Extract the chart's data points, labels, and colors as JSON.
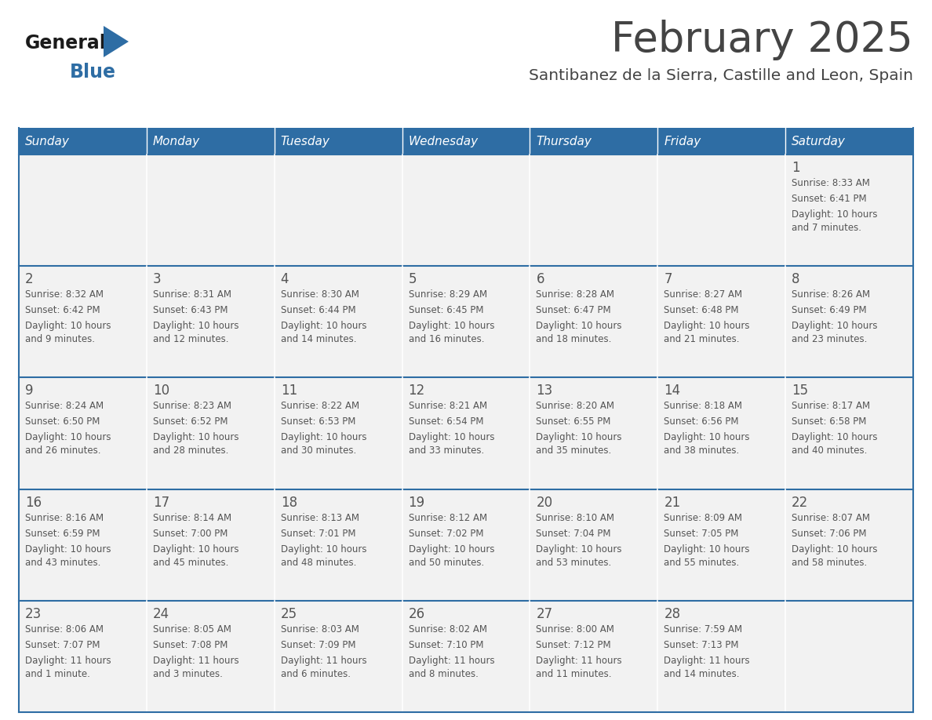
{
  "title": "February 2025",
  "subtitle": "Santibanez de la Sierra, Castille and Leon, Spain",
  "days_of_week": [
    "Sunday",
    "Monday",
    "Tuesday",
    "Wednesday",
    "Thursday",
    "Friday",
    "Saturday"
  ],
  "header_bg": "#2E6DA4",
  "header_text": "#FFFFFF",
  "cell_bg": "#F2F2F2",
  "cell_text": "#555555",
  "divider_color": "#2E6DA4",
  "title_color": "#444444",
  "subtitle_color": "#444444",
  "logo_general_color": "#1a1a1a",
  "logo_blue_color": "#2E6DA4",
  "weeks": [
    [
      {
        "day": null,
        "sunrise": null,
        "sunset": null,
        "daylight": null
      },
      {
        "day": null,
        "sunrise": null,
        "sunset": null,
        "daylight": null
      },
      {
        "day": null,
        "sunrise": null,
        "sunset": null,
        "daylight": null
      },
      {
        "day": null,
        "sunrise": null,
        "sunset": null,
        "daylight": null
      },
      {
        "day": null,
        "sunrise": null,
        "sunset": null,
        "daylight": null
      },
      {
        "day": null,
        "sunrise": null,
        "sunset": null,
        "daylight": null
      },
      {
        "day": 1,
        "sunrise": "8:33 AM",
        "sunset": "6:41 PM",
        "daylight": "10 hours\nand 7 minutes."
      }
    ],
    [
      {
        "day": 2,
        "sunrise": "8:32 AM",
        "sunset": "6:42 PM",
        "daylight": "10 hours\nand 9 minutes."
      },
      {
        "day": 3,
        "sunrise": "8:31 AM",
        "sunset": "6:43 PM",
        "daylight": "10 hours\nand 12 minutes."
      },
      {
        "day": 4,
        "sunrise": "8:30 AM",
        "sunset": "6:44 PM",
        "daylight": "10 hours\nand 14 minutes."
      },
      {
        "day": 5,
        "sunrise": "8:29 AM",
        "sunset": "6:45 PM",
        "daylight": "10 hours\nand 16 minutes."
      },
      {
        "day": 6,
        "sunrise": "8:28 AM",
        "sunset": "6:47 PM",
        "daylight": "10 hours\nand 18 minutes."
      },
      {
        "day": 7,
        "sunrise": "8:27 AM",
        "sunset": "6:48 PM",
        "daylight": "10 hours\nand 21 minutes."
      },
      {
        "day": 8,
        "sunrise": "8:26 AM",
        "sunset": "6:49 PM",
        "daylight": "10 hours\nand 23 minutes."
      }
    ],
    [
      {
        "day": 9,
        "sunrise": "8:24 AM",
        "sunset": "6:50 PM",
        "daylight": "10 hours\nand 26 minutes."
      },
      {
        "day": 10,
        "sunrise": "8:23 AM",
        "sunset": "6:52 PM",
        "daylight": "10 hours\nand 28 minutes."
      },
      {
        "day": 11,
        "sunrise": "8:22 AM",
        "sunset": "6:53 PM",
        "daylight": "10 hours\nand 30 minutes."
      },
      {
        "day": 12,
        "sunrise": "8:21 AM",
        "sunset": "6:54 PM",
        "daylight": "10 hours\nand 33 minutes."
      },
      {
        "day": 13,
        "sunrise": "8:20 AM",
        "sunset": "6:55 PM",
        "daylight": "10 hours\nand 35 minutes."
      },
      {
        "day": 14,
        "sunrise": "8:18 AM",
        "sunset": "6:56 PM",
        "daylight": "10 hours\nand 38 minutes."
      },
      {
        "day": 15,
        "sunrise": "8:17 AM",
        "sunset": "6:58 PM",
        "daylight": "10 hours\nand 40 minutes."
      }
    ],
    [
      {
        "day": 16,
        "sunrise": "8:16 AM",
        "sunset": "6:59 PM",
        "daylight": "10 hours\nand 43 minutes."
      },
      {
        "day": 17,
        "sunrise": "8:14 AM",
        "sunset": "7:00 PM",
        "daylight": "10 hours\nand 45 minutes."
      },
      {
        "day": 18,
        "sunrise": "8:13 AM",
        "sunset": "7:01 PM",
        "daylight": "10 hours\nand 48 minutes."
      },
      {
        "day": 19,
        "sunrise": "8:12 AM",
        "sunset": "7:02 PM",
        "daylight": "10 hours\nand 50 minutes."
      },
      {
        "day": 20,
        "sunrise": "8:10 AM",
        "sunset": "7:04 PM",
        "daylight": "10 hours\nand 53 minutes."
      },
      {
        "day": 21,
        "sunrise": "8:09 AM",
        "sunset": "7:05 PM",
        "daylight": "10 hours\nand 55 minutes."
      },
      {
        "day": 22,
        "sunrise": "8:07 AM",
        "sunset": "7:06 PM",
        "daylight": "10 hours\nand 58 minutes."
      }
    ],
    [
      {
        "day": 23,
        "sunrise": "8:06 AM",
        "sunset": "7:07 PM",
        "daylight": "11 hours\nand 1 minute."
      },
      {
        "day": 24,
        "sunrise": "8:05 AM",
        "sunset": "7:08 PM",
        "daylight": "11 hours\nand 3 minutes."
      },
      {
        "day": 25,
        "sunrise": "8:03 AM",
        "sunset": "7:09 PM",
        "daylight": "11 hours\nand 6 minutes."
      },
      {
        "day": 26,
        "sunrise": "8:02 AM",
        "sunset": "7:10 PM",
        "daylight": "11 hours\nand 8 minutes."
      },
      {
        "day": 27,
        "sunrise": "8:00 AM",
        "sunset": "7:12 PM",
        "daylight": "11 hours\nand 11 minutes."
      },
      {
        "day": 28,
        "sunrise": "7:59 AM",
        "sunset": "7:13 PM",
        "daylight": "11 hours\nand 14 minutes."
      },
      {
        "day": null,
        "sunrise": null,
        "sunset": null,
        "daylight": null
      }
    ]
  ]
}
